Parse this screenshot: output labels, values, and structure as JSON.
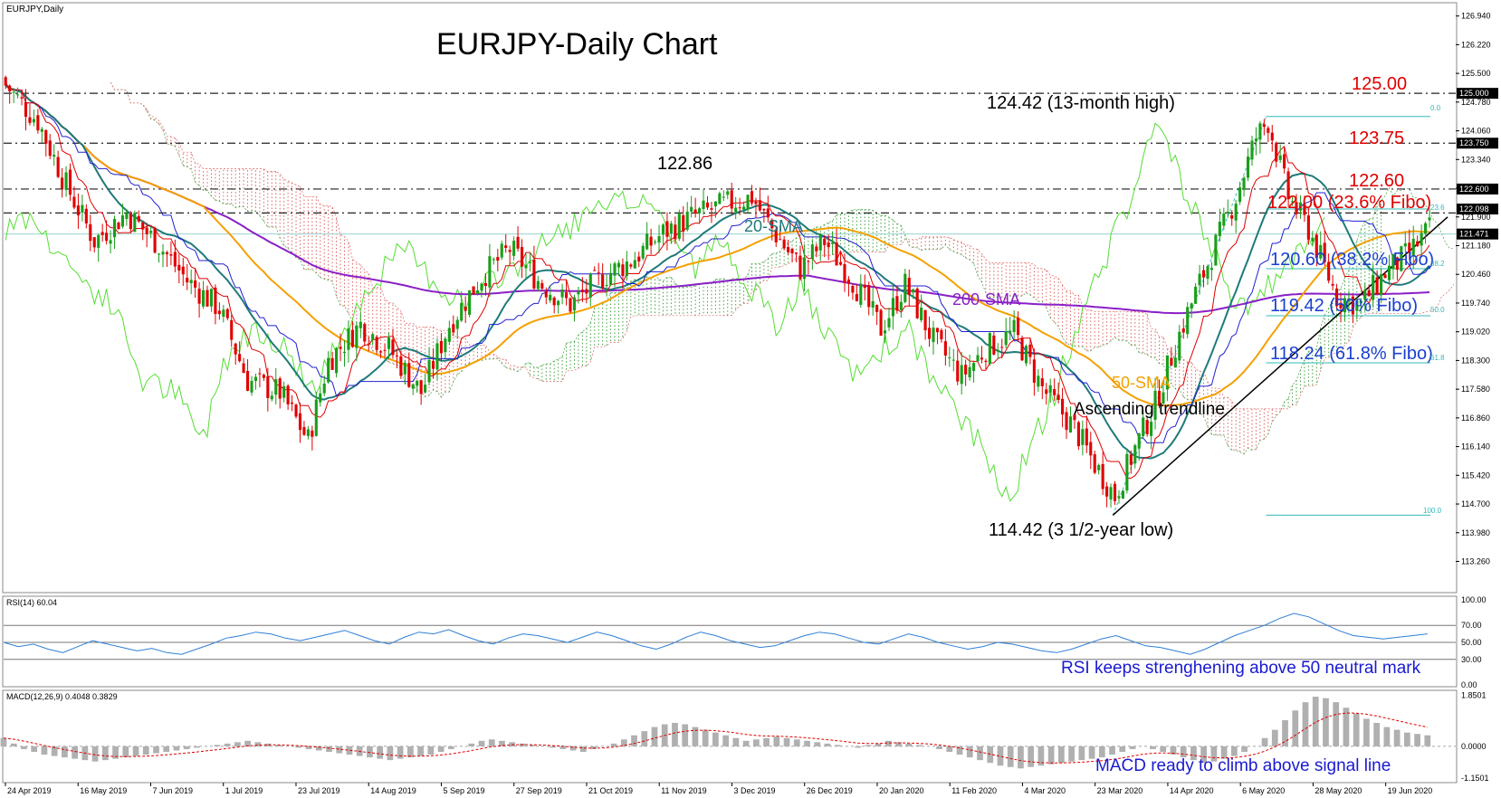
{
  "chart_data": [
    {
      "type": "candlestick",
      "symbol_label": "EURJPY,Daily",
      "title": "EURJPY-Daily Chart",
      "ylim": [
        112.5,
        127.25
      ],
      "y_ticks": [
        "126.940",
        "126.220",
        "125.500",
        "124.780",
        "124.060",
        "123.340",
        "122.620",
        "121.900",
        "121.180",
        "120.460",
        "119.740",
        "119.020",
        "118.300",
        "117.580",
        "116.860",
        "116.140",
        "115.420",
        "114.700",
        "113.980",
        "113.260"
      ],
      "price_tags": [
        {
          "value": 125.0,
          "label": "125.000"
        },
        {
          "value": 123.75,
          "label": "123.750"
        },
        {
          "value": 122.6,
          "label": "122.600"
        },
        {
          "value": 122.098,
          "label": "122.098"
        },
        {
          "value": 121.471,
          "label": "121.471"
        }
      ],
      "x_labels": [
        "24 Apr 2019",
        "16 May 2019",
        "7 Jun 2019",
        "1 Jul 2019",
        "23 Jul 2019",
        "14 Aug 2019",
        "5 Sep 2019",
        "27 Sep 2019",
        "21 Oct 2019",
        "11 Nov 2019",
        "3 Dec 2019",
        "26 Dec 2019",
        "20 Jan 2020",
        "11 Feb 2020",
        "4 Mar 2020",
        "23 Mar 2020",
        "14 Apr 2020",
        "6 May 2020",
        "28 May 2020",
        "19 Jun 2020"
      ],
      "close_path": [
        [
          0,
          125.2
        ],
        [
          8,
          124.3
        ],
        [
          15,
          122.7
        ],
        [
          22,
          121.3
        ],
        [
          30,
          122.0
        ],
        [
          38,
          121.2
        ],
        [
          45,
          120.3
        ],
        [
          53,
          119.6
        ],
        [
          60,
          117.8
        ],
        [
          68,
          117.5
        ],
        [
          75,
          116.3
        ],
        [
          80,
          118.3
        ],
        [
          88,
          119.2
        ],
        [
          95,
          118.6
        ],
        [
          103,
          117.5
        ],
        [
          110,
          119.2
        ],
        [
          118,
          120.4
        ],
        [
          125,
          121.1
        ],
        [
          133,
          120.2
        ],
        [
          140,
          119.7
        ],
        [
          148,
          120.4
        ],
        [
          155,
          120.8
        ],
        [
          163,
          121.5
        ],
        [
          170,
          121.9
        ],
        [
          178,
          122.2
        ],
        [
          185,
          122.4
        ],
        [
          190,
          121.6
        ],
        [
          197,
          120.6
        ],
        [
          203,
          121.3
        ],
        [
          210,
          120.3
        ],
        [
          217,
          119.1
        ],
        [
          223,
          120.2
        ],
        [
          230,
          118.8
        ],
        [
          237,
          117.9
        ],
        [
          243,
          118.6
        ],
        [
          250,
          119.0
        ],
        [
          257,
          117.6
        ],
        [
          265,
          116.6
        ],
        [
          270,
          115.7
        ],
        [
          275,
          114.9
        ],
        [
          280,
          116.1
        ],
        [
          285,
          117.2
        ],
        [
          290,
          118.7
        ],
        [
          295,
          120.0
        ],
        [
          300,
          121.2
        ],
        [
          305,
          122.4
        ],
        [
          310,
          123.9
        ],
        [
          313,
          124.3
        ],
        [
          318,
          122.4
        ],
        [
          323,
          121.6
        ],
        [
          330,
          119.9
        ],
        [
          336,
          119.7
        ],
        [
          342,
          120.5
        ],
        [
          348,
          121.0
        ],
        [
          353,
          121.6
        ]
      ],
      "levels": [
        {
          "value": 125.0,
          "label": "125.00"
        },
        {
          "value": 123.75,
          "label": "123.75"
        },
        {
          "value": 122.6,
          "label": "122.60"
        },
        {
          "value": 122.0,
          "label": "122.00 (23.6% Fibo)"
        }
      ],
      "fibo": [
        {
          "value": 124.42,
          "label": "0.0"
        },
        {
          "value": 122.098,
          "label": ""
        },
        {
          "value": 120.6,
          "label": "120.60 (38.2% Fibo)"
        },
        {
          "value": 119.42,
          "label": "119.42 (50% Fibo)"
        },
        {
          "value": 118.24,
          "label": "118.24 (61.8% Fibo)"
        },
        {
          "value": 114.42,
          "label": "100.0"
        }
      ],
      "fibo_small_labels": [
        "61.8",
        "50.0",
        "38.2",
        "23.6"
      ],
      "indicators": {
        "sma20_label": "20-SMA",
        "sma50_label": "50-SMA",
        "sma200_label": "200-SMA",
        "trendline_label": "Ascending trendline"
      },
      "annotations": {
        "peak_2019": "122.86",
        "high_2020": "124.42 (13-month high)",
        "low_2020": "114.42 (3 1/2-year low)"
      },
      "colors": {
        "up_candle": "#1a9e1a",
        "down_candle": "#e00000",
        "sma20": "#1f7a7a",
        "sma50": "#f5a000",
        "sma200": "#8a1fc7",
        "tenkan": "#e00000",
        "kijun": "#2020d0",
        "chikou": "#55dd33",
        "cloud_bear": "#e06060",
        "cloud_bull": "#40a040",
        "fibo": "#33b8b8",
        "level_text": "#e00000",
        "fibo_text": "#1a3fd1",
        "rsi": "#2f7fd6",
        "macd_hist": "#b0b0b0",
        "macd_signal": "#e00000"
      }
    },
    {
      "type": "line",
      "header": "RSI(14) 60.04",
      "ylim": [
        0,
        100
      ],
      "y_ticks": [
        "100.00",
        "70.00",
        "50.00",
        "30.00",
        "0.00"
      ],
      "levels": [
        70,
        50,
        30
      ],
      "values": [
        50,
        45,
        48,
        42,
        38,
        45,
        52,
        48,
        44,
        40,
        43,
        38,
        36,
        42,
        48,
        55,
        58,
        62,
        60,
        55,
        52,
        56,
        60,
        64,
        58,
        52,
        48,
        56,
        62,
        60,
        65,
        58,
        52,
        48,
        55,
        60,
        58,
        54,
        50,
        56,
        62,
        58,
        52,
        46,
        42,
        48,
        56,
        62,
        58,
        52,
        48,
        44,
        46,
        52,
        58,
        62,
        60,
        55,
        50,
        48,
        54,
        60,
        56,
        50,
        46,
        42,
        45,
        50,
        48,
        44,
        40,
        38,
        42,
        48,
        54,
        58,
        52,
        46,
        44,
        40,
        36,
        42,
        50,
        58,
        64,
        70,
        78,
        84,
        80,
        72,
        64,
        58,
        56,
        54,
        56,
        58,
        60
      ],
      "annotation": "RSI keeps strenghening above 50 neutral mark"
    },
    {
      "type": "bar",
      "header": "MACD(12,26,9) 0.4048 0.3829",
      "ylim": [
        -1.25,
        1.9
      ],
      "y_ticks": [
        "1.8501",
        "0.0000",
        "-1.1501"
      ],
      "histogram": [
        0.3,
        0.1,
        -0.1,
        -0.2,
        -0.3,
        -0.35,
        -0.4,
        -0.45,
        -0.5,
        -0.55,
        -0.5,
        -0.45,
        -0.4,
        -0.35,
        -0.3,
        -0.25,
        -0.2,
        -0.15,
        -0.1,
        -0.05,
        0.0,
        0.05,
        0.1,
        0.15,
        0.2,
        0.15,
        0.1,
        0.05,
        0.0,
        -0.05,
        -0.1,
        -0.15,
        -0.2,
        -0.25,
        -0.3,
        -0.35,
        -0.4,
        -0.45,
        -0.5,
        -0.45,
        -0.4,
        -0.35,
        -0.3,
        -0.2,
        -0.1,
        0.0,
        0.1,
        0.2,
        0.25,
        0.2,
        0.15,
        0.1,
        0.05,
        0.0,
        -0.05,
        -0.1,
        -0.15,
        -0.2,
        -0.1,
        0.0,
        0.1,
        0.25,
        0.4,
        0.55,
        0.7,
        0.8,
        0.85,
        0.8,
        0.7,
        0.6,
        0.5,
        0.4,
        0.3,
        0.2,
        0.25,
        0.3,
        0.35,
        0.3,
        0.25,
        0.2,
        0.15,
        0.1,
        0.05,
        0.0,
        -0.05,
        0.05,
        0.1,
        0.2,
        0.15,
        0.1,
        0.05,
        0.0,
        -0.1,
        -0.2,
        -0.3,
        -0.4,
        -0.5,
        -0.6,
        -0.7,
        -0.75,
        -0.8,
        -0.75,
        -0.7,
        -0.65,
        -0.6,
        -0.55,
        -0.5,
        -0.45,
        -0.4,
        -0.3,
        -0.2,
        -0.1,
        0.0,
        -0.1,
        -0.2,
        -0.3,
        -0.4,
        -0.5,
        -0.6,
        -0.55,
        -0.45,
        -0.35,
        -0.2,
        0.0,
        0.3,
        0.6,
        0.95,
        1.3,
        1.6,
        1.8,
        1.75,
        1.6,
        1.4,
        1.2,
        1.0,
        0.85,
        0.7,
        0.6,
        0.5,
        0.45,
        0.4
      ],
      "signal_name": "signal",
      "annotation": "MACD ready to climb above signal line"
    }
  ]
}
